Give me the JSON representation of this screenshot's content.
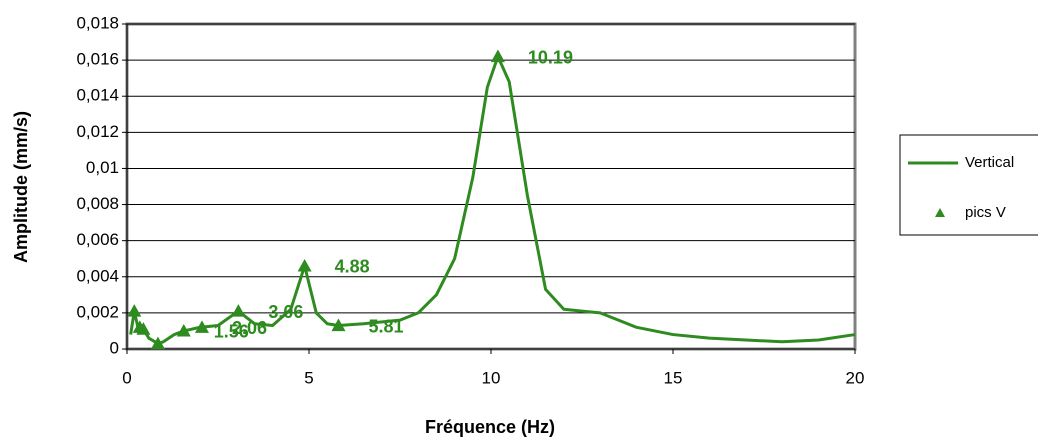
{
  "chart_data": {
    "type": "line",
    "xlabel": "Fréquence (Hz)",
    "ylabel": "Amplitude (mm/s)",
    "xlim": [
      0,
      20
    ],
    "xticks": [
      0,
      5,
      10,
      15,
      20
    ],
    "ylim": [
      0,
      0.018
    ],
    "yticks": [
      0,
      {
        "value": 0.002,
        "label": "0,002"
      },
      {
        "value": 0.004,
        "label": "0,004"
      },
      {
        "value": 0.006,
        "label": "0,006"
      },
      {
        "value": 0.008,
        "label": "0,008"
      },
      {
        "value": 0.01,
        "label": "0,01"
      },
      {
        "value": 0.012,
        "label": "0,012"
      },
      {
        "value": 0.014,
        "label": "0,014"
      },
      {
        "value": 0.016,
        "label": "0,016"
      },
      {
        "value": 0.018,
        "label": "0,018"
      }
    ],
    "grid": true,
    "series": [
      {
        "name": "Vertical",
        "color": "#2e8b1f",
        "x": [
          0.1,
          0.2,
          0.3,
          0.45,
          0.6,
          0.85,
          1.0,
          1.3,
          1.56,
          2.0,
          2.5,
          3.06,
          3.5,
          4.0,
          4.5,
          4.88,
          5.2,
          5.5,
          5.81,
          6.5,
          7.5,
          8.0,
          8.5,
          9.0,
          9.5,
          9.9,
          10.19,
          10.5,
          11.0,
          11.5,
          12.0,
          12.5,
          13.0,
          13.5,
          14.0,
          15.0,
          16.0,
          17.0,
          18.0,
          19.0,
          20.0
        ],
        "values": [
          0.0008,
          0.0021,
          0.0012,
          0.0011,
          0.0006,
          0.0003,
          0.0004,
          0.0008,
          0.001,
          0.0012,
          0.0013,
          0.0021,
          0.0014,
          0.0013,
          0.0022,
          0.0046,
          0.002,
          0.0014,
          0.0013,
          0.0014,
          0.0016,
          0.002,
          0.003,
          0.005,
          0.0095,
          0.0145,
          0.0162,
          0.0148,
          0.0085,
          0.0033,
          0.0022,
          0.0021,
          0.002,
          0.0016,
          0.0012,
          0.0008,
          0.0006,
          0.0005,
          0.0004,
          0.0005,
          0.0008
        ]
      },
      {
        "name": "pics V",
        "color": "#2e8b1f",
        "marker": "triangle",
        "x": [
          0.2,
          0.35,
          0.45,
          0.85,
          1.56,
          2.06,
          3.06,
          4.88,
          5.81,
          10.19
        ],
        "values": [
          0.0021,
          0.0012,
          0.0011,
          0.0003,
          0.001,
          0.0012,
          0.0021,
          0.0046,
          0.0013,
          0.0162
        ],
        "labels": [
          null,
          null,
          null,
          null,
          "1.56",
          "2.06",
          "3.06",
          "4.88",
          "5.81",
          "10.19"
        ]
      }
    ]
  }
}
